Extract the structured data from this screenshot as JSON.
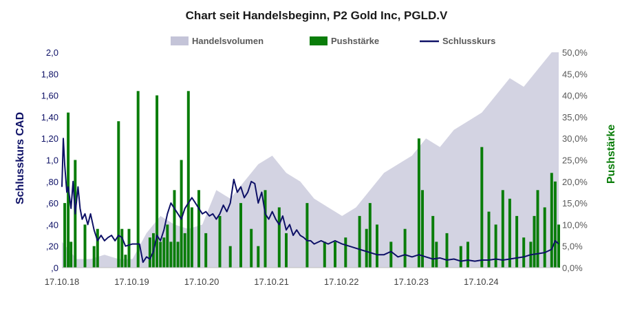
{
  "chart_data": {
    "type": "combo",
    "title": "Chart seit Handelsbeginn,  P2 Gold Inc, PGLD.V",
    "ylabel_left": "Schlusskurs CAD",
    "ylabel_right": "Pushstärke",
    "ylim_left": [
      0,
      2.0
    ],
    "ylim_right": [
      0,
      50
    ],
    "left_ticks": [
      0,
      0.2,
      0.4,
      0.6,
      0.8,
      1.0,
      1.2,
      1.4,
      1.6,
      1.8,
      2.0
    ],
    "left_tick_labels": [
      ",0",
      ",20",
      ",40",
      ",60",
      ",80",
      "1,0",
      "1,20",
      "1,40",
      "1,60",
      "1,80",
      "2,0"
    ],
    "right_ticks": [
      0,
      5,
      10,
      15,
      20,
      25,
      30,
      35,
      40,
      45,
      50
    ],
    "right_tick_labels": [
      "0,0%",
      "5,0%",
      "10,0%",
      "15,0%",
      "20,0%",
      "25,0%",
      "30,0%",
      "35,0%",
      "40,0%",
      "45,0%",
      "50,0%"
    ],
    "xlim": [
      2018.79,
      2025.9
    ],
    "x_ticks": [
      2018.79,
      2019.79,
      2020.79,
      2021.79,
      2022.79,
      2023.79,
      2024.79
    ],
    "x_tick_labels": [
      "17.10.18",
      "17.10.19",
      "17.10.20",
      "17.10.21",
      "17.10.22",
      "17.10.23",
      "17.10.24"
    ],
    "legend": [
      {
        "name": "Handelsvolumen",
        "color": "#c4c4d8",
        "kind": "area"
      },
      {
        "name": "Pushstärke",
        "color": "#0a7d0a",
        "kind": "bar"
      },
      {
        "name": "Schlusskurs",
        "color": "#0d1066",
        "kind": "line"
      }
    ],
    "legend_position": "top-center",
    "series": [
      {
        "name": "Schlusskurs",
        "axis": "left",
        "x": [
          2018.79,
          2018.81,
          2018.83,
          2018.86,
          2018.88,
          2018.92,
          2018.95,
          2018.98,
          2019.02,
          2019.05,
          2019.08,
          2019.12,
          2019.16,
          2019.2,
          2019.25,
          2019.3,
          2019.35,
          2019.4,
          2019.45,
          2019.5,
          2019.55,
          2019.6,
          2019.65,
          2019.7,
          2019.8,
          2019.9,
          2019.95,
          2020.0,
          2020.05,
          2020.1,
          2020.15,
          2020.2,
          2020.25,
          2020.3,
          2020.35,
          2020.4,
          2020.45,
          2020.5,
          2020.55,
          2020.6,
          2020.65,
          2020.7,
          2020.75,
          2020.8,
          2020.85,
          2020.9,
          2020.95,
          2021.0,
          2021.05,
          2021.1,
          2021.15,
          2021.2,
          2021.25,
          2021.3,
          2021.35,
          2021.4,
          2021.45,
          2021.5,
          2021.55,
          2021.6,
          2021.65,
          2021.7,
          2021.75,
          2021.8,
          2021.85,
          2021.9,
          2021.95,
          2022.0,
          2022.05,
          2022.1,
          2022.15,
          2022.2,
          2022.25,
          2022.3,
          2022.35,
          2022.4,
          2022.5,
          2022.6,
          2022.7,
          2022.8,
          2022.9,
          2023.0,
          2023.1,
          2023.2,
          2023.3,
          2023.4,
          2023.5,
          2023.6,
          2023.7,
          2023.8,
          2023.9,
          2024.0,
          2024.1,
          2024.2,
          2024.3,
          2024.4,
          2024.5,
          2024.6,
          2024.7,
          2024.8,
          2024.9,
          2025.0,
          2025.1,
          2025.2,
          2025.3,
          2025.4,
          2025.5,
          2025.6,
          2025.7,
          2025.8,
          2025.85,
          2025.9
        ],
        "y": [
          0.75,
          1.2,
          0.95,
          0.7,
          0.75,
          0.55,
          0.8,
          0.5,
          0.75,
          0.55,
          0.45,
          0.5,
          0.4,
          0.5,
          0.35,
          0.25,
          0.3,
          0.25,
          0.28,
          0.3,
          0.25,
          0.3,
          0.28,
          0.2,
          0.22,
          0.22,
          0.05,
          0.1,
          0.08,
          0.15,
          0.3,
          0.25,
          0.35,
          0.5,
          0.6,
          0.55,
          0.5,
          0.45,
          0.55,
          0.6,
          0.65,
          0.6,
          0.55,
          0.5,
          0.52,
          0.48,
          0.5,
          0.45,
          0.5,
          0.58,
          0.52,
          0.6,
          0.82,
          0.7,
          0.75,
          0.65,
          0.7,
          0.8,
          0.78,
          0.6,
          0.7,
          0.5,
          0.45,
          0.52,
          0.45,
          0.4,
          0.48,
          0.35,
          0.4,
          0.3,
          0.35,
          0.3,
          0.28,
          0.25,
          0.25,
          0.22,
          0.25,
          0.22,
          0.25,
          0.22,
          0.2,
          0.18,
          0.16,
          0.14,
          0.12,
          0.12,
          0.15,
          0.1,
          0.12,
          0.1,
          0.12,
          0.1,
          0.08,
          0.09,
          0.07,
          0.08,
          0.06,
          0.07,
          0.06,
          0.07,
          0.07,
          0.08,
          0.07,
          0.08,
          0.09,
          0.1,
          0.12,
          0.13,
          0.14,
          0.17,
          0.25,
          0.22
        ]
      },
      {
        "name": "Pushstärke",
        "axis": "right",
        "x": [
          2018.83,
          2018.88,
          2018.92,
          2018.98,
          2019.12,
          2019.25,
          2019.3,
          2019.6,
          2019.65,
          2019.7,
          2019.75,
          2019.88,
          2020.05,
          2020.1,
          2020.15,
          2020.2,
          2020.25,
          2020.3,
          2020.35,
          2020.4,
          2020.45,
          2020.5,
          2020.55,
          2020.6,
          2020.65,
          2020.75,
          2020.85,
          2021.05,
          2021.2,
          2021.35,
          2021.5,
          2021.6,
          2021.7,
          2021.9,
          2022.0,
          2022.3,
          2022.55,
          2022.7,
          2022.85,
          2023.05,
          2023.15,
          2023.2,
          2023.3,
          2023.5,
          2023.7,
          2023.9,
          2023.95,
          2024.1,
          2024.15,
          2024.3,
          2024.5,
          2024.6,
          2024.8,
          2024.9,
          2025.0,
          2025.1,
          2025.2,
          2025.3,
          2025.4,
          2025.5,
          2025.55,
          2025.6,
          2025.7,
          2025.8,
          2025.85,
          2025.9
        ],
        "y": [
          15,
          36,
          6,
          25,
          10,
          5,
          9,
          34,
          9,
          3,
          9,
          41,
          7,
          8,
          40,
          6,
          7,
          10,
          6,
          18,
          6,
          25,
          8,
          41,
          14,
          18,
          8,
          12,
          5,
          15,
          9,
          5,
          18,
          14,
          8,
          15,
          6,
          6,
          7,
          12,
          9,
          15,
          10,
          6,
          9,
          30,
          18,
          12,
          6,
          8,
          5,
          6,
          28,
          13,
          10,
          18,
          16,
          12,
          7,
          6,
          12,
          18,
          14,
          22,
          20,
          10
        ]
      },
      {
        "name": "Handelsvolumen",
        "axis": "right",
        "x": [
          2018.79,
          2019.0,
          2019.2,
          2019.4,
          2019.6,
          2019.8,
          2020.0,
          2020.2,
          2020.4,
          2020.6,
          2020.8,
          2021.0,
          2021.2,
          2021.4,
          2021.6,
          2021.8,
          2022.0,
          2022.2,
          2022.4,
          2022.6,
          2022.8,
          2023.0,
          2023.2,
          2023.4,
          2023.6,
          2023.8,
          2024.0,
          2024.2,
          2024.4,
          2024.6,
          2024.8,
          2025.0,
          2025.2,
          2025.4,
          2025.6,
          2025.8,
          2025.9
        ],
        "y": [
          6,
          2,
          2,
          3,
          2,
          2,
          8,
          12,
          10,
          9,
          10,
          18,
          16,
          20,
          24,
          26,
          22,
          20,
          16,
          14,
          12,
          14,
          18,
          22,
          24,
          26,
          30,
          28,
          32,
          34,
          36,
          40,
          44,
          42,
          46,
          50,
          50
        ]
      }
    ]
  }
}
